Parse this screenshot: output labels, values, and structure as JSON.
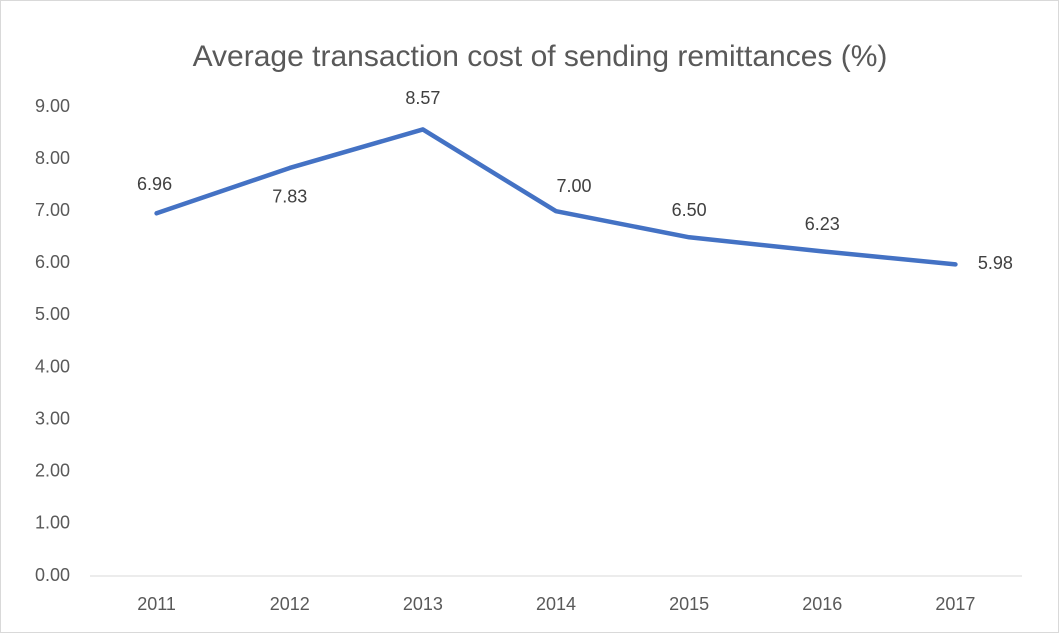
{
  "chart_data": {
    "type": "line",
    "title": "Average transaction cost of sending remittances  (%)",
    "categories": [
      "2011",
      "2012",
      "2013",
      "2014",
      "2015",
      "2016",
      "2017"
    ],
    "series": [
      {
        "name": "Average transaction cost",
        "color": "#4472c4",
        "values": [
          6.96,
          7.83,
          8.57,
          7,
          6.5,
          6.23,
          5.98
        ],
        "value_labels": [
          "6.96",
          "7.83",
          "8.57",
          "7.00",
          "6.50",
          "6.23",
          "5.98"
        ]
      }
    ],
    "ylim": [
      0,
      9
    ],
    "yticks": [
      {
        "value": 0,
        "label": "0.00"
      },
      {
        "value": 1,
        "label": "1.00"
      },
      {
        "value": 2,
        "label": "2.00"
      },
      {
        "value": 3,
        "label": "3.00"
      },
      {
        "value": 4,
        "label": "4.00"
      },
      {
        "value": 5,
        "label": "5.00"
      },
      {
        "value": 6,
        "label": "6.00"
      },
      {
        "value": 7,
        "label": "7.00"
      },
      {
        "value": 8,
        "label": "8.00"
      },
      {
        "value": 9,
        "label": "9.00"
      }
    ],
    "grid": false,
    "legend": false
  }
}
